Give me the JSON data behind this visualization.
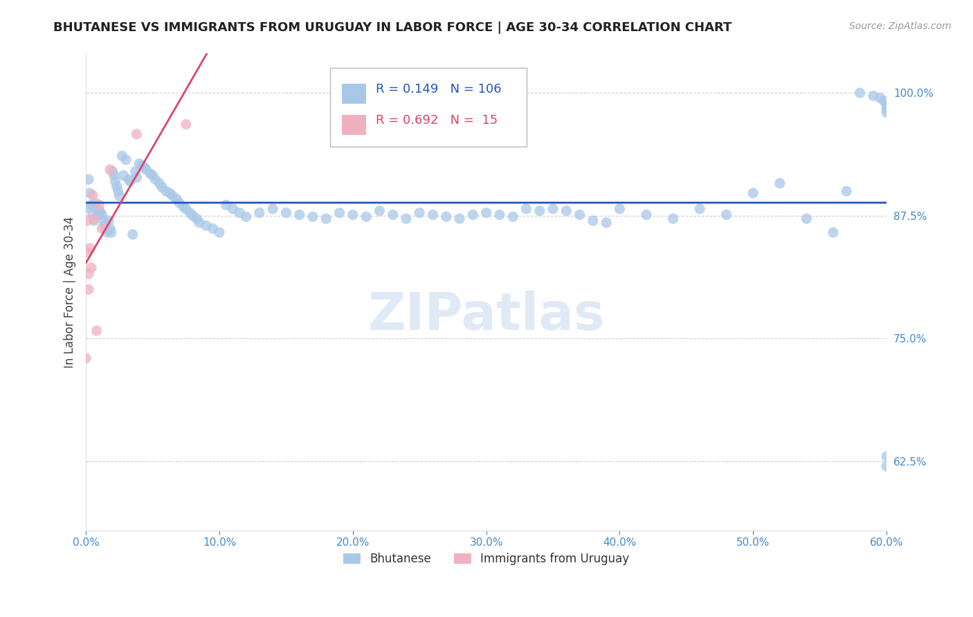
{
  "title": "BHUTANESE VS IMMIGRANTS FROM URUGUAY IN LABOR FORCE | AGE 30-34 CORRELATION CHART",
  "source": "Source: ZipAtlas.com",
  "ylabel": "In Labor Force | Age 30-34",
  "xlim": [
    0.0,
    0.6
  ],
  "ylim": [
    0.555,
    1.04
  ],
  "xticks": [
    0.0,
    0.1,
    0.2,
    0.3,
    0.4,
    0.5,
    0.6
  ],
  "xtick_labels": [
    "0.0%",
    "10.0%",
    "20.0%",
    "30.0%",
    "40.0%",
    "50.0%",
    "60.0%"
  ],
  "yticks": [
    0.625,
    0.75,
    0.875,
    1.0
  ],
  "ytick_labels": [
    "62.5%",
    "75.0%",
    "87.5%",
    "100.0%"
  ],
  "grid_color": "#cccccc",
  "bg_color": "#ffffff",
  "blue_scatter_color": "#a8c8e8",
  "pink_scatter_color": "#f0b0c0",
  "blue_line_color": "#2255bb",
  "pink_line_color": "#dd4466",
  "axis_label_color": "#4488cc",
  "title_color": "#222222",
  "source_color": "#999999",
  "R_blue": 0.149,
  "N_blue": 106,
  "R_pink": 0.692,
  "N_pink": 15,
  "watermark": "ZIPatlas",
  "bhutanese_x": [
    0.001,
    0.002,
    0.003,
    0.004,
    0.005,
    0.006,
    0.007,
    0.008,
    0.009,
    0.01,
    0.011,
    0.012,
    0.013,
    0.014,
    0.015,
    0.016,
    0.017,
    0.018,
    0.019,
    0.02,
    0.021,
    0.022,
    0.023,
    0.024,
    0.025,
    0.027,
    0.028,
    0.03,
    0.032,
    0.033,
    0.035,
    0.037,
    0.038,
    0.04,
    0.042,
    0.044,
    0.045,
    0.048,
    0.05,
    0.052,
    0.055,
    0.057,
    0.06,
    0.063,
    0.065,
    0.068,
    0.07,
    0.073,
    0.075,
    0.078,
    0.08,
    0.083,
    0.085,
    0.09,
    0.095,
    0.1,
    0.105,
    0.11,
    0.115,
    0.12,
    0.13,
    0.14,
    0.15,
    0.16,
    0.17,
    0.18,
    0.19,
    0.2,
    0.21,
    0.22,
    0.23,
    0.24,
    0.25,
    0.26,
    0.27,
    0.28,
    0.29,
    0.3,
    0.31,
    0.32,
    0.33,
    0.34,
    0.35,
    0.36,
    0.37,
    0.38,
    0.39,
    0.4,
    0.42,
    0.44,
    0.46,
    0.48,
    0.5,
    0.52,
    0.54,
    0.56,
    0.57,
    0.58,
    0.59,
    0.595,
    0.598,
    0.6,
    0.6,
    0.6,
    0.6,
    0.6
  ],
  "bhutanese_y": [
    0.883,
    0.912,
    0.898,
    0.886,
    0.876,
    0.87,
    0.888,
    0.882,
    0.876,
    0.88,
    0.878,
    0.876,
    0.87,
    0.865,
    0.862,
    0.858,
    0.87,
    0.862,
    0.858,
    0.92,
    0.916,
    0.91,
    0.905,
    0.9,
    0.895,
    0.936,
    0.916,
    0.932,
    0.912,
    0.91,
    0.856,
    0.92,
    0.914,
    0.928,
    0.926,
    0.924,
    0.922,
    0.918,
    0.916,
    0.912,
    0.908,
    0.904,
    0.9,
    0.898,
    0.895,
    0.892,
    0.888,
    0.884,
    0.882,
    0.878,
    0.875,
    0.872,
    0.868,
    0.865,
    0.862,
    0.858,
    0.886,
    0.882,
    0.878,
    0.874,
    0.878,
    0.882,
    0.878,
    0.876,
    0.874,
    0.872,
    0.878,
    0.876,
    0.874,
    0.88,
    0.876,
    0.872,
    0.878,
    0.876,
    0.874,
    0.872,
    0.876,
    0.878,
    0.876,
    0.874,
    0.882,
    0.88,
    0.882,
    0.88,
    0.876,
    0.87,
    0.868,
    0.882,
    0.876,
    0.872,
    0.882,
    0.876,
    0.898,
    0.908,
    0.872,
    0.858,
    0.9,
    1.0,
    0.997,
    0.995,
    0.992,
    0.988,
    0.984,
    0.98,
    0.63,
    0.62
  ],
  "uruguay_x": [
    0.0,
    0.001,
    0.001,
    0.002,
    0.002,
    0.003,
    0.004,
    0.005,
    0.006,
    0.008,
    0.01,
    0.012,
    0.018,
    0.038,
    0.075
  ],
  "uruguay_y": [
    0.73,
    0.87,
    0.838,
    0.816,
    0.8,
    0.842,
    0.822,
    0.896,
    0.872,
    0.758,
    0.886,
    0.862,
    0.922,
    0.958,
    0.968
  ]
}
